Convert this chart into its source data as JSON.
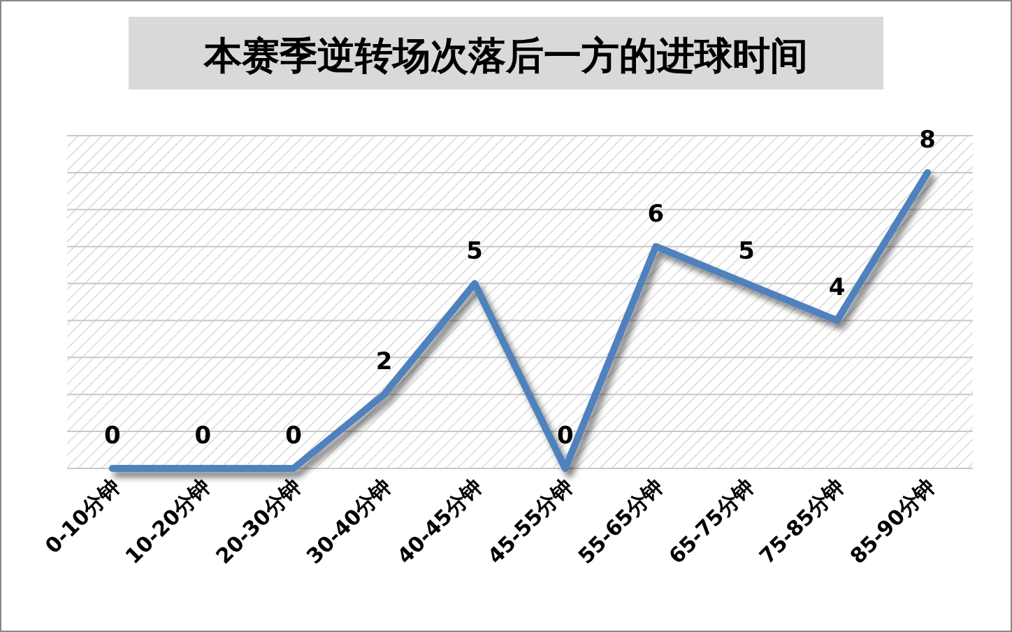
{
  "chart_data": {
    "type": "line",
    "title": "本赛季逆转场次落后一方的进球时间",
    "categories": [
      "0-10分钟",
      "10-20分钟",
      "20-30分钟",
      "30-40分钟",
      "40-45分钟",
      "45-55分钟",
      "55-65分钟",
      "65-75分钟",
      "75-85分钟",
      "85-90分钟"
    ],
    "series": [
      {
        "color": "#4f81bd",
        "values": [
          0,
          0,
          0,
          2,
          5,
          0,
          6,
          5,
          4,
          8
        ]
      }
    ],
    "ylim": [
      0,
      9
    ],
    "yticks": [
      {
        "value": 0,
        "label": null
      },
      {
        "value": 1,
        "label": null
      },
      {
        "value": 2,
        "label": null
      },
      {
        "value": 3,
        "label": null
      },
      {
        "value": 4,
        "label": null
      },
      {
        "value": 5,
        "label": null
      },
      {
        "value": 6,
        "label": null
      },
      {
        "value": 7,
        "label": null
      },
      {
        "value": 8,
        "label": null
      },
      {
        "value": 9,
        "label": null
      }
    ],
    "grid": "y",
    "data_labels": true,
    "marker": "none",
    "line_style": "solid",
    "tick_labels": "x"
  }
}
